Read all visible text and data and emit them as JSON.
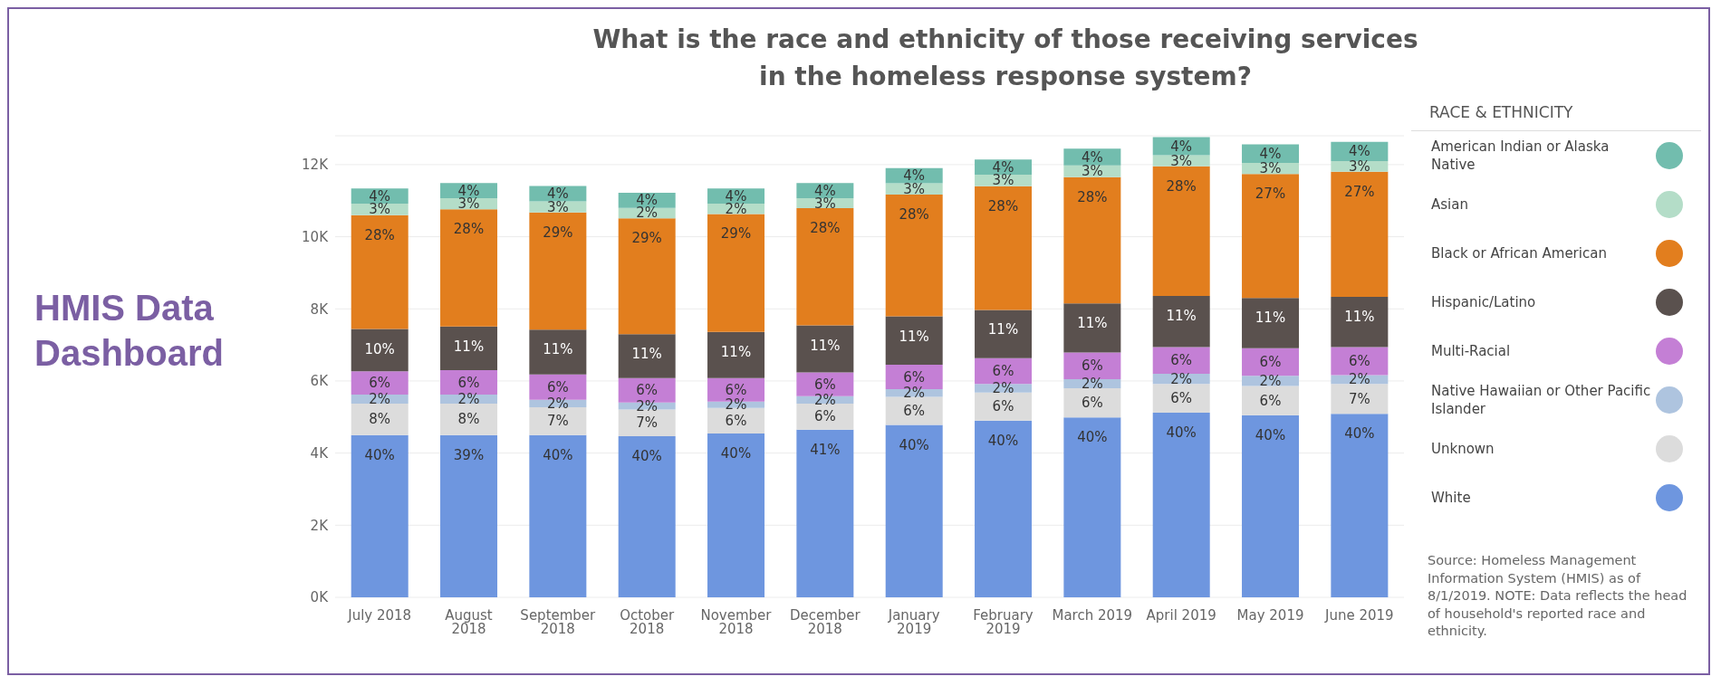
{
  "chart_data": {
    "type": "bar",
    "title": "What is the race and ethnicity of those receiving services in the homeless response system?",
    "legend_title": "RACE & ETHNICITY",
    "stacked": true,
    "grid": "y",
    "legend": "right",
    "categories": [
      "July 2018",
      "August 2018",
      "September 2018",
      "October 2018",
      "November 2018",
      "December 2018",
      "January 2019",
      "February 2019",
      "March 2019",
      "April 2019",
      "May 2019",
      "June 2019"
    ],
    "ylim": [
      0,
      12800
    ],
    "yticks": [
      {
        "value": 0,
        "label": "0K"
      },
      {
        "value": 2000,
        "label": "2K"
      },
      {
        "value": 4000,
        "label": "4K"
      },
      {
        "value": 6000,
        "label": "6K"
      },
      {
        "value": 8000,
        "label": "8K"
      },
      {
        "value": 10000,
        "label": "10K"
      },
      {
        "value": 12000,
        "label": "12K"
      }
    ],
    "series": [
      {
        "name": "White",
        "color": "#6e96df",
        "values": [
          4500,
          4500,
          4500,
          4470,
          4540,
          4650,
          4780,
          4900,
          4990,
          5120,
          5050,
          5090
        ]
      },
      {
        "name": "Unknown",
        "color": "#dcdcdc",
        "values": [
          870,
          870,
          770,
          740,
          710,
          720,
          780,
          780,
          810,
          800,
          810,
          830
        ]
      },
      {
        "name": "Native Hawaiian or Other Pacific Islander",
        "color": "#aec4df",
        "values": [
          250,
          250,
          210,
          190,
          180,
          210,
          210,
          240,
          250,
          280,
          280,
          240
        ]
      },
      {
        "name": "Multi-Racial",
        "color": "#c47fd5",
        "values": [
          650,
          680,
          700,
          680,
          650,
          660,
          680,
          710,
          740,
          740,
          770,
          780
        ]
      },
      {
        "name": "Hispanic/Latino",
        "color": "#5a514e",
        "values": [
          1170,
          1210,
          1240,
          1220,
          1280,
          1300,
          1340,
          1340,
          1360,
          1420,
          1390,
          1390
        ]
      },
      {
        "name": "Black or African American",
        "color": "#e27e1e",
        "values": [
          3160,
          3250,
          3250,
          3210,
          3270,
          3250,
          3380,
          3430,
          3500,
          3590,
          3440,
          3470
        ]
      },
      {
        "name": "Asian",
        "color": "#b4ddc8",
        "values": [
          320,
          310,
          310,
          290,
          290,
          280,
          310,
          320,
          330,
          310,
          310,
          300
        ]
      },
      {
        "name": "American Indian or Alaska Native",
        "color": "#72bdae",
        "values": [
          420,
          420,
          430,
          420,
          420,
          420,
          420,
          420,
          460,
          500,
          510,
          530
        ]
      }
    ],
    "annotations": [
      "HMIS Data Dashboard",
      "Source: Homeless Management Information System (HMIS) as of 8/1/2019. NOTE: Data reflects the head of household's reported race and ethnicity.",
      {
        "text": "40%",
        "x": "July 2018",
        "y": 4500
      },
      {
        "text": "8%",
        "x": "July 2018",
        "y": 5370
      },
      {
        "text": "2%",
        "x": "July 2018",
        "y": 5620
      },
      {
        "text": "6%",
        "x": "July 2018",
        "y": 6270
      },
      {
        "text": "10%",
        "x": "July 2018",
        "y": 7440
      },
      {
        "text": "28%",
        "x": "July 2018",
        "y": 10600
      },
      {
        "text": "3%",
        "x": "July 2018",
        "y": 10920
      },
      {
        "text": "4%",
        "x": "July 2018",
        "y": 11340
      },
      {
        "text": "39%",
        "x": "August 2018",
        "y": 4500
      },
      {
        "text": "8%",
        "x": "August 2018",
        "y": 5370
      },
      {
        "text": "2%",
        "x": "August 2018",
        "y": 5620
      },
      {
        "text": "6%",
        "x": "August 2018",
        "y": 6300
      },
      {
        "text": "11%",
        "x": "August 2018",
        "y": 7510
      },
      {
        "text": "28%",
        "x": "August 2018",
        "y": 10760
      },
      {
        "text": "3%",
        "x": "August 2018",
        "y": 11070
      },
      {
        "text": "4%",
        "x": "August 2018",
        "y": 11490
      },
      {
        "text": "40%",
        "x": "September 2018",
        "y": 4500
      },
      {
        "text": "7%",
        "x": "September 2018",
        "y": 5270
      },
      {
        "text": "2%",
        "x": "September 2018",
        "y": 5480
      },
      {
        "text": "6%",
        "x": "September 2018",
        "y": 6180
      },
      {
        "text": "11%",
        "x": "September 2018",
        "y": 7420
      },
      {
        "text": "29%",
        "x": "September 2018",
        "y": 10670
      },
      {
        "text": "3%",
        "x": "September 2018",
        "y": 10980
      },
      {
        "text": "4%",
        "x": "September 2018",
        "y": 11410
      },
      {
        "text": "40%",
        "x": "October 2018",
        "y": 4470
      },
      {
        "text": "7%",
        "x": "October 2018",
        "y": 5210
      },
      {
        "text": "2%",
        "x": "October 2018",
        "y": 5400
      },
      {
        "text": "6%",
        "x": "October 2018",
        "y": 6080
      },
      {
        "text": "11%",
        "x": "October 2018",
        "y": 7300
      },
      {
        "text": "29%",
        "x": "October 2018",
        "y": 10510
      },
      {
        "text": "2%",
        "x": "October 2018",
        "y": 10800
      },
      {
        "text": "4%",
        "x": "October 2018",
        "y": 11220
      },
      {
        "text": "40%",
        "x": "November 2018",
        "y": 4540
      },
      {
        "text": "6%",
        "x": "November 2018",
        "y": 5250
      },
      {
        "text": "2%",
        "x": "November 2018",
        "y": 5430
      },
      {
        "text": "6%",
        "x": "November 2018",
        "y": 6080
      },
      {
        "text": "11%",
        "x": "November 2018",
        "y": 7360
      },
      {
        "text": "29%",
        "x": "November 2018",
        "y": 10630
      },
      {
        "text": "2%",
        "x": "November 2018",
        "y": 10920
      },
      {
        "text": "4%",
        "x": "November 2018",
        "y": 11340
      },
      {
        "text": "41%",
        "x": "December 2018",
        "y": 4650
      },
      {
        "text": "6%",
        "x": "December 2018",
        "y": 5370
      },
      {
        "text": "2%",
        "x": "December 2018",
        "y": 5580
      },
      {
        "text": "6%",
        "x": "December 2018",
        "y": 6240
      },
      {
        "text": "11%",
        "x": "December 2018",
        "y": 7540
      },
      {
        "text": "28%",
        "x": "December 2018",
        "y": 10790
      },
      {
        "text": "3%",
        "x": "December 2018",
        "y": 11070
      },
      {
        "text": "4%",
        "x": "December 2018",
        "y": 11490
      },
      {
        "text": "40%",
        "x": "January 2019",
        "y": 4780
      },
      {
        "text": "6%",
        "x": "January 2019",
        "y": 5560
      },
      {
        "text": "2%",
        "x": "January 2019",
        "y": 5770
      },
      {
        "text": "6%",
        "x": "January 2019",
        "y": 6450
      },
      {
        "text": "11%",
        "x": "January 2019",
        "y": 7790
      },
      {
        "text": "28%",
        "x": "January 2019",
        "y": 11170
      },
      {
        "text": "3%",
        "x": "January 2019",
        "y": 11480
      },
      {
        "text": "4%",
        "x": "January 2019",
        "y": 11900
      },
      {
        "text": "40%",
        "x": "February 2019",
        "y": 4900
      },
      {
        "text": "6%",
        "x": "February 2019",
        "y": 5680
      },
      {
        "text": "2%",
        "x": "February 2019",
        "y": 5920
      },
      {
        "text": "6%",
        "x": "February 2019",
        "y": 6630
      },
      {
        "text": "11%",
        "x": "February 2019",
        "y": 7970
      },
      {
        "text": "28%",
        "x": "February 2019",
        "y": 11400
      },
      {
        "text": "3%",
        "x": "February 2019",
        "y": 11720
      },
      {
        "text": "4%",
        "x": "February 2019",
        "y": 12140
      },
      {
        "text": "40%",
        "x": "March 2019",
        "y": 4990
      },
      {
        "text": "6%",
        "x": "March 2019",
        "y": 5800
      },
      {
        "text": "2%",
        "x": "March 2019",
        "y": 6050
      },
      {
        "text": "6%",
        "x": "March 2019",
        "y": 6790
      },
      {
        "text": "11%",
        "x": "March 2019",
        "y": 8150
      },
      {
        "text": "28%",
        "x": "March 2019",
        "y": 11650
      },
      {
        "text": "3%",
        "x": "March 2019",
        "y": 11980
      },
      {
        "text": "4%",
        "x": "March 2019",
        "y": 12440
      },
      {
        "text": "40%",
        "x": "April 2019",
        "y": 5120
      },
      {
        "text": "6%",
        "x": "April 2019",
        "y": 5920
      },
      {
        "text": "2%",
        "x": "April 2019",
        "y": 6200
      },
      {
        "text": "6%",
        "x": "April 2019",
        "y": 6940
      },
      {
        "text": "11%",
        "x": "April 2019",
        "y": 8360
      },
      {
        "text": "28%",
        "x": "April 2019",
        "y": 11950
      },
      {
        "text": "3%",
        "x": "April 2019",
        "y": 12260
      },
      {
        "text": "4%",
        "x": "April 2019",
        "y": 12760
      },
      {
        "text": "40%",
        "x": "May 2019",
        "y": 5050
      },
      {
        "text": "6%",
        "x": "May 2019",
        "y": 5860
      },
      {
        "text": "2%",
        "x": "May 2019",
        "y": 6140
      },
      {
        "text": "6%",
        "x": "May 2019",
        "y": 6910
      },
      {
        "text": "11%",
        "x": "May 2019",
        "y": 8300
      },
      {
        "text": "27%",
        "x": "May 2019",
        "y": 11740
      },
      {
        "text": "3%",
        "x": "May 2019",
        "y": 12050
      },
      {
        "text": "4%",
        "x": "May 2019",
        "y": 12560
      },
      {
        "text": "40%",
        "x": "June 2019",
        "y": 5090
      },
      {
        "text": "7%",
        "x": "June 2019",
        "y": 5920
      },
      {
        "text": "2%",
        "x": "June 2019",
        "y": 6160
      },
      {
        "text": "6%",
        "x": "June 2019",
        "y": 6940
      },
      {
        "text": "11%",
        "x": "June 2019",
        "y": 8330
      },
      {
        "text": "27%",
        "x": "June 2019",
        "y": 11800
      },
      {
        "text": "3%",
        "x": "June 2019",
        "y": 12100
      },
      {
        "text": "4%",
        "x": "June 2019",
        "y": 12630
      }
    ]
  }
}
